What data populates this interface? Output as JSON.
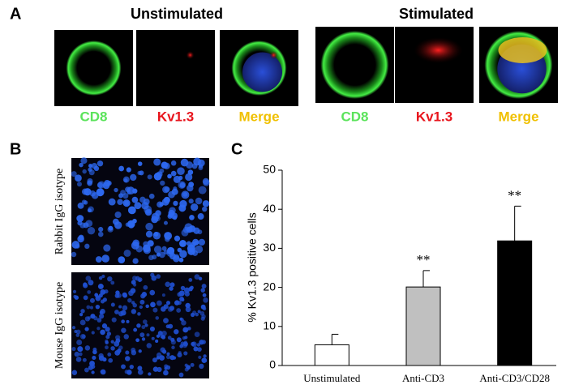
{
  "panel_labels": [
    "A",
    "B",
    "C"
  ],
  "panel_a": {
    "groups": [
      {
        "title": "Unstimulated",
        "channels": [
          "CD8",
          "Kv1.3",
          "Merge"
        ]
      },
      {
        "title": "Stimulated",
        "channels": [
          "CD8",
          "Kv1.3",
          "Merge"
        ]
      }
    ]
  },
  "panel_b": {
    "rows": [
      "Rabbit IgG isotype",
      "Mouse IgG isotype"
    ]
  },
  "chart_data": {
    "type": "bar",
    "ylabel": "% Kv1.3 positive cells",
    "categories": [
      "Unstimulated",
      "Anti-CD3",
      "Anti-CD3/CD28"
    ],
    "values": [
      5.3,
      20.1,
      31.9
    ],
    "errors": [
      2.7,
      4.2,
      8.9
    ],
    "colors": [
      "#ffffff",
      "#c0c0c0",
      "#000000"
    ],
    "annotations": [
      null,
      "**",
      "**"
    ],
    "ylim": [
      0,
      50
    ],
    "yticks": [
      0,
      10,
      20,
      30,
      40,
      50
    ]
  }
}
